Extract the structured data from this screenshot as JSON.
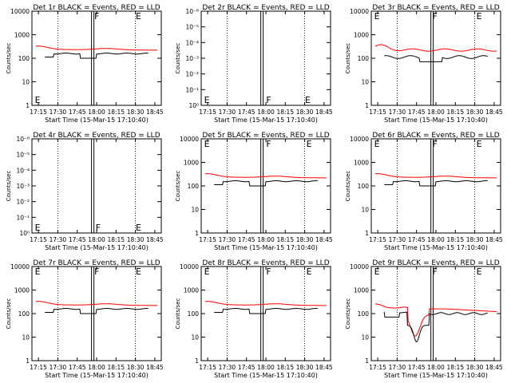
{
  "chart_data": [
    {
      "type": "line",
      "title": "Det 1r BLACK = Events, RED = LLD",
      "xlabel": "Start Time (15-Mar-15 17:10:40)",
      "ylabel": "Counts/sec",
      "yscale": "log",
      "ylim": [
        1,
        10000
      ],
      "yticks": [
        "1",
        "10",
        "100",
        "1000",
        "10000"
      ],
      "xticks": [
        "17:15",
        "17:30",
        "17:45",
        "18:00",
        "18:15",
        "18:30",
        "18:45"
      ],
      "xlim": [
        "17:10",
        "18:50"
      ],
      "profile": "flat",
      "markers": [
        {
          "label": "E",
          "x": "17:11",
          "pos": "bottom"
        },
        {
          "label": "F",
          "x": "17:57",
          "pos": "top"
        },
        {
          "label": "E",
          "x": "18:29",
          "pos": "top"
        }
      ],
      "series": [
        {
          "color": "#ff0000"
        },
        {
          "color": "#000000"
        }
      ]
    },
    {
      "type": "line",
      "title": "Det 2r BLACK = Events, RED = LLD",
      "xlabel": "Start Time (15-Mar-15 17:10:40)",
      "ylabel": "Counts/sec",
      "yscale": "log",
      "ylim": [
        1,
        1e-06
      ],
      "yticks": [
        "10⁰",
        "10⁻¹",
        "10⁻²",
        "10⁻³",
        "10⁻⁴",
        "10⁻⁵",
        "10⁻⁶"
      ],
      "xticks": [
        "17:15",
        "17:30",
        "17:45",
        "18:00",
        "18:15",
        "18:30",
        "18:45"
      ],
      "xlim": [
        "17:10",
        "18:50"
      ],
      "profile": "empty",
      "markers": [
        {
          "label": "E",
          "x": "17:11",
          "pos": "bottom"
        },
        {
          "label": "F",
          "x": "17:59",
          "pos": "bottom"
        },
        {
          "label": "E",
          "x": "18:29",
          "pos": "bottom"
        }
      ],
      "series": []
    },
    {
      "type": "line",
      "title": "Det 3r BLACK = Events, RED = LLD",
      "xlabel": "Start Time (15-Mar-15 17:10:40)",
      "ylabel": "Counts/sec",
      "yscale": "log",
      "ylim": [
        1,
        10000
      ],
      "yticks": [
        "1",
        "10",
        "100",
        "1000",
        "10000"
      ],
      "xticks": [
        "17:15",
        "17:30",
        "17:45",
        "18:00",
        "18:15",
        "18:30",
        "18:45"
      ],
      "xlim": [
        "17:10",
        "18:50"
      ],
      "profile": "bumpy",
      "markers": [
        {
          "label": "E",
          "x": "17:11",
          "pos": "top"
        },
        {
          "label": "F",
          "x": "17:56",
          "pos": "top"
        },
        {
          "label": "E",
          "x": "18:30",
          "pos": "top"
        }
      ],
      "series": [
        {
          "color": "#ff0000"
        },
        {
          "color": "#000000"
        }
      ]
    },
    {
      "type": "line",
      "title": "Det 4r BLACK = Events, RED = LLD",
      "xlabel": "Start Time (15-Mar-15 17:10:40)",
      "ylabel": "Counts/sec",
      "yscale": "log",
      "ylim": [
        1,
        1e-06
      ],
      "yticks": [
        "10⁰",
        "10⁻¹",
        "10⁻²",
        "10⁻³",
        "10⁻⁴",
        "10⁻⁵",
        "10⁻⁶"
      ],
      "xticks": [
        "17:15",
        "17:30",
        "17:45",
        "18:00",
        "18:15",
        "18:30",
        "18:45"
      ],
      "xlim": [
        "17:10",
        "18:50"
      ],
      "profile": "empty",
      "markers": [
        {
          "label": "E",
          "x": "17:11",
          "pos": "bottom"
        },
        {
          "label": "F",
          "x": "17:58",
          "pos": "bottom"
        },
        {
          "label": "E",
          "x": "18:29",
          "pos": "bottom"
        }
      ],
      "series": []
    },
    {
      "type": "line",
      "title": "Det 5r BLACK = Events, RED = LLD",
      "xlabel": "Start Time (15-Mar-15 17:10:40)",
      "ylabel": "Counts/sec",
      "yscale": "log",
      "ylim": [
        1,
        10000
      ],
      "yticks": [
        "1",
        "10",
        "100",
        "1000",
        "10000"
      ],
      "xticks": [
        "17:15",
        "17:30",
        "17:45",
        "18:00",
        "18:15",
        "18:30",
        "18:45"
      ],
      "xlim": [
        "17:10",
        "18:50"
      ],
      "profile": "flat",
      "markers": [
        {
          "label": "E",
          "x": "17:11",
          "pos": "top"
        },
        {
          "label": "F",
          "x": "17:59",
          "pos": "top"
        },
        {
          "label": "E",
          "x": "18:30",
          "pos": "top"
        }
      ],
      "series": [
        {
          "color": "#ff0000"
        },
        {
          "color": "#000000"
        }
      ]
    },
    {
      "type": "line",
      "title": "Det 6r BLACK = Events, RED = LLD",
      "xlabel": "Start Time (15-Mar-15 17:10:40)",
      "ylabel": "Counts/sec",
      "yscale": "log",
      "ylim": [
        1,
        10000
      ],
      "yticks": [
        "1",
        "10",
        "100",
        "1000",
        "10000"
      ],
      "xticks": [
        "17:15",
        "17:30",
        "17:45",
        "18:00",
        "18:15",
        "18:30",
        "18:45"
      ],
      "xlim": [
        "17:10",
        "18:50"
      ],
      "profile": "flat",
      "markers": [
        {
          "label": "E",
          "x": "17:11",
          "pos": "top"
        },
        {
          "label": "F",
          "x": "17:56",
          "pos": "top"
        },
        {
          "label": "E",
          "x": "18:30",
          "pos": "top"
        }
      ],
      "series": [
        {
          "color": "#ff0000"
        },
        {
          "color": "#000000"
        }
      ]
    },
    {
      "type": "line",
      "title": "Det 7r BLACK = Events, RED = LLD",
      "xlabel": "Start Time (15-Mar-15 17:10:40)",
      "ylabel": "Counts/sec",
      "yscale": "log",
      "ylim": [
        1,
        10000
      ],
      "yticks": [
        "1",
        "10",
        "100",
        "1000",
        "10000"
      ],
      "xticks": [
        "17:15",
        "17:30",
        "17:45",
        "18:00",
        "18:15",
        "18:30",
        "18:45"
      ],
      "xlim": [
        "17:10",
        "18:50"
      ],
      "profile": "flat",
      "markers": [
        {
          "label": "E",
          "x": "17:11",
          "pos": "top"
        },
        {
          "label": "F",
          "x": "17:57",
          "pos": "top"
        },
        {
          "label": "E",
          "x": "18:29",
          "pos": "top"
        }
      ],
      "series": [
        {
          "color": "#ff0000"
        },
        {
          "color": "#000000"
        }
      ]
    },
    {
      "type": "line",
      "title": "Det 8r BLACK = Events, RED = LLD",
      "xlabel": "Start Time (15-Mar-15 17:10:40)",
      "ylabel": "Counts/sec",
      "yscale": "log",
      "ylim": [
        1,
        10000
      ],
      "yticks": [
        "1",
        "10",
        "100",
        "1000",
        "10000"
      ],
      "xticks": [
        "17:15",
        "17:30",
        "17:45",
        "18:00",
        "18:15",
        "18:30",
        "18:45"
      ],
      "xlim": [
        "17:10",
        "18:50"
      ],
      "profile": "flat",
      "markers": [
        {
          "label": "E",
          "x": "17:11",
          "pos": "top"
        },
        {
          "label": "F",
          "x": "17:59",
          "pos": "top"
        },
        {
          "label": "E",
          "x": "18:30",
          "pos": "top"
        }
      ],
      "series": [
        {
          "color": "#ff0000"
        },
        {
          "color": "#000000"
        }
      ]
    },
    {
      "type": "line",
      "title": "Det 9r BLACK = Events, RED = LLD",
      "xlabel": "Start Time (15-Mar-15 17:10:40)",
      "ylabel": "Counts/sec",
      "yscale": "log",
      "ylim": [
        1,
        10000
      ],
      "yticks": [
        "1",
        "10",
        "100",
        "1000",
        "10000"
      ],
      "xticks": [
        "17:15",
        "17:30",
        "17:45",
        "18:00",
        "18:15",
        "18:30",
        "18:45"
      ],
      "xlim": [
        "17:10",
        "18:50"
      ],
      "profile": "dip",
      "markers": [
        {
          "label": "E",
          "x": "17:11",
          "pos": "top"
        },
        {
          "label": "F",
          "x": "17:56",
          "pos": "top"
        },
        {
          "label": "E",
          "x": "18:30",
          "pos": "top"
        }
      ],
      "series": [
        {
          "color": "#ff0000"
        },
        {
          "color": "#000000"
        }
      ]
    }
  ]
}
